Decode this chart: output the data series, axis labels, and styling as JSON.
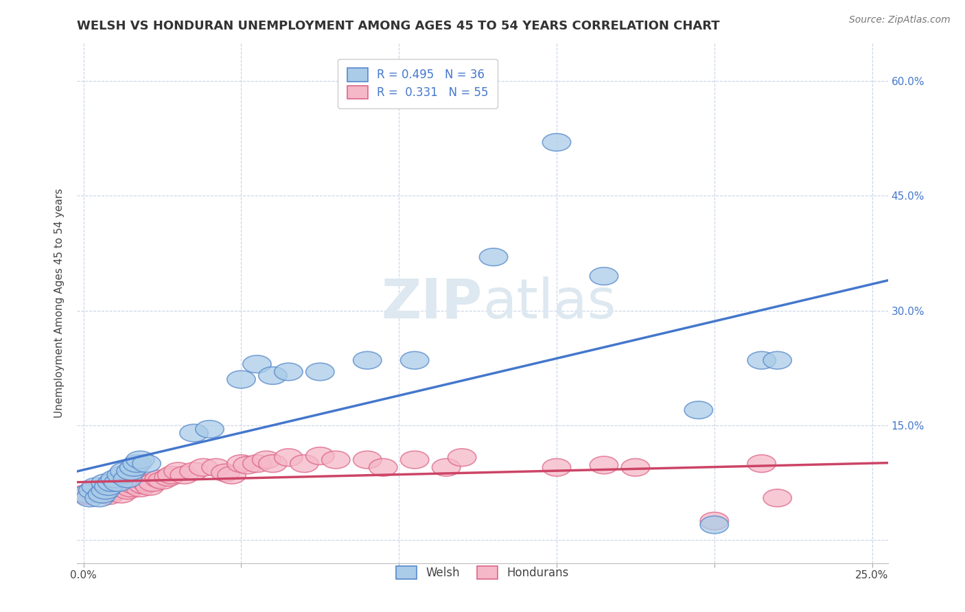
{
  "title": "WELSH VS HONDURAN UNEMPLOYMENT AMONG AGES 45 TO 54 YEARS CORRELATION CHART",
  "source_text": "Source: ZipAtlas.com",
  "ylabel": "Unemployment Among Ages 45 to 54 years",
  "xlim": [
    -0.002,
    0.255
  ],
  "ylim": [
    -0.03,
    0.65
  ],
  "xticks": [
    0.0,
    0.05,
    0.1,
    0.15,
    0.2,
    0.25
  ],
  "yticks": [
    0.0,
    0.15,
    0.3,
    0.45,
    0.6
  ],
  "right_ytick_labels": [
    "",
    "15.0%",
    "30.0%",
    "45.0%",
    "60.0%"
  ],
  "xtick_labels_show": {
    "0.0": "0.0%",
    "0.25": "25.0%"
  },
  "welsh_R": 0.495,
  "welsh_N": 36,
  "honduran_R": 0.331,
  "honduran_N": 55,
  "welsh_color": "#aacce8",
  "welsh_edge_color": "#5588cc",
  "welsh_line_color": "#4477cc",
  "honduran_color": "#f5b8c8",
  "honduran_edge_color": "#dd6688",
  "honduran_line_color": "#cc4466",
  "background_color": "#ffffff",
  "grid_color": "#c8d4e8",
  "watermark_color": "#dde8f0",
  "welsh_x": [
    0.001,
    0.002,
    0.003,
    0.004,
    0.005,
    0.006,
    0.007,
    0.007,
    0.008,
    0.009,
    0.01,
    0.011,
    0.012,
    0.013,
    0.014,
    0.015,
    0.016,
    0.017,
    0.018,
    0.02,
    0.035,
    0.04,
    0.05,
    0.055,
    0.06,
    0.065,
    0.075,
    0.09,
    0.105,
    0.13,
    0.15,
    0.165,
    0.195,
    0.2,
    0.215,
    0.22
  ],
  "welsh_y": [
    0.06,
    0.055,
    0.065,
    0.07,
    0.055,
    0.06,
    0.065,
    0.075,
    0.07,
    0.075,
    0.08,
    0.075,
    0.085,
    0.09,
    0.08,
    0.09,
    0.095,
    0.1,
    0.105,
    0.1,
    0.14,
    0.145,
    0.21,
    0.23,
    0.215,
    0.22,
    0.22,
    0.235,
    0.235,
    0.37,
    0.52,
    0.345,
    0.17,
    0.02,
    0.235,
    0.235
  ],
  "honduran_x": [
    0.0,
    0.001,
    0.002,
    0.003,
    0.003,
    0.004,
    0.005,
    0.006,
    0.007,
    0.008,
    0.009,
    0.01,
    0.011,
    0.012,
    0.013,
    0.014,
    0.015,
    0.016,
    0.017,
    0.018,
    0.019,
    0.02,
    0.021,
    0.022,
    0.024,
    0.025,
    0.027,
    0.028,
    0.03,
    0.032,
    0.035,
    0.038,
    0.042,
    0.045,
    0.047,
    0.05,
    0.052,
    0.055,
    0.058,
    0.06,
    0.065,
    0.07,
    0.075,
    0.08,
    0.09,
    0.095,
    0.105,
    0.115,
    0.12,
    0.15,
    0.165,
    0.175,
    0.2,
    0.215,
    0.22
  ],
  "honduran_y": [
    0.06,
    0.058,
    0.06,
    0.062,
    0.065,
    0.065,
    0.065,
    0.068,
    0.06,
    0.058,
    0.063,
    0.068,
    0.072,
    0.06,
    0.075,
    0.065,
    0.068,
    0.072,
    0.075,
    0.068,
    0.072,
    0.075,
    0.07,
    0.075,
    0.08,
    0.078,
    0.082,
    0.085,
    0.09,
    0.085,
    0.09,
    0.095,
    0.095,
    0.088,
    0.085,
    0.1,
    0.098,
    0.1,
    0.105,
    0.1,
    0.108,
    0.1,
    0.11,
    0.105,
    0.105,
    0.095,
    0.105,
    0.095,
    0.108,
    0.095,
    0.098,
    0.095,
    0.025,
    0.1,
    0.055
  ],
  "title_fontsize": 13,
  "axis_fontsize": 11,
  "tick_fontsize": 11,
  "legend_fontsize": 12,
  "right_label_color": "#4477cc"
}
